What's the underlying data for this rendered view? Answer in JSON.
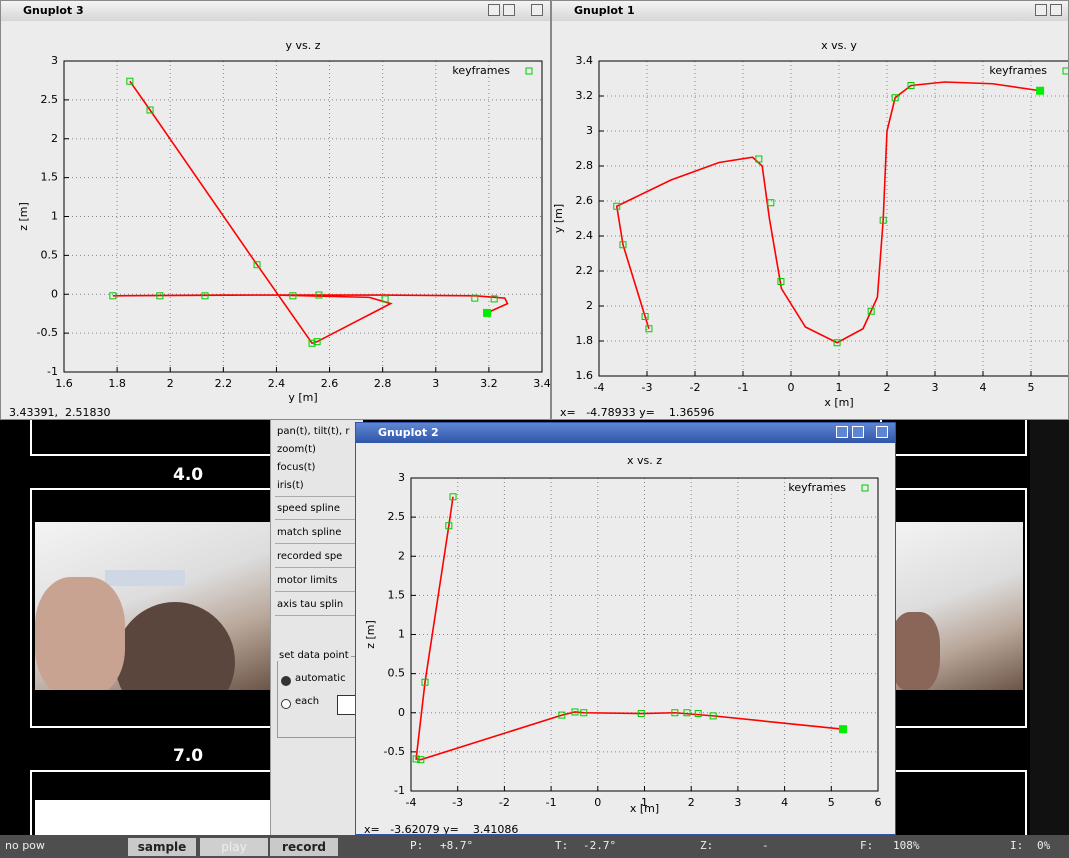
{
  "chart_data": [
    {
      "type": "line",
      "window_title": "Gnuplot 3",
      "title": "y vs. z",
      "xlabel": "y [m]",
      "ylabel": "z [m]",
      "xlim": [
        1.6,
        3.4
      ],
      "ylim": [
        -1,
        3
      ],
      "xticks": [
        1.6,
        1.8,
        2,
        2.2,
        2.4,
        2.6,
        2.8,
        3,
        3.2,
        3.4
      ],
      "yticks": [
        -1,
        -0.5,
        0,
        0.5,
        1,
        1.5,
        2,
        2.5,
        3
      ],
      "grid": true,
      "legend_position": "top-right",
      "status": "3.43391,  2.51830",
      "series": [
        {
          "style": "line",
          "color": "#ff0000",
          "x": [
            1.848,
            1.924,
            2.327,
            2.534,
            2.553,
            2.7,
            2.83,
            2.75,
            2.4,
            1.784,
            2.2,
            2.8,
            3.15,
            3.26,
            3.27,
            3.193
          ],
          "values": [
            2.74,
            2.37,
            0.38,
            -0.63,
            -0.61,
            -0.35,
            -0.12,
            -0.04,
            -0.01,
            -0.02,
            -0.01,
            -0.01,
            -0.02,
            -0.05,
            -0.12,
            -0.24
          ]
        },
        {
          "name": "keyframes",
          "style": "open-square",
          "color": "#00cc00",
          "x": [
            1.848,
            1.924,
            2.327,
            1.784,
            1.961,
            2.131,
            2.462,
            2.56,
            2.809,
            3.147,
            3.22,
            2.534,
            2.553
          ],
          "values": [
            2.74,
            2.37,
            0.38,
            -0.02,
            -0.02,
            -0.02,
            -0.02,
            -0.01,
            -0.06,
            -0.05,
            -0.06,
            -0.63,
            -0.61
          ]
        },
        {
          "style": "filled-square",
          "color": "#00ee00",
          "x": [
            3.193
          ],
          "values": [
            -0.24
          ]
        }
      ]
    },
    {
      "type": "line",
      "window_title": "Gnuplot 1",
      "title": "x vs. y",
      "xlabel": "x [m]",
      "ylabel": "y [m]",
      "xlim": [
        -4,
        6
      ],
      "ylim": [
        1.6,
        3.4
      ],
      "xticks": [
        -4,
        -3,
        -2,
        -1,
        0,
        1,
        2,
        3,
        4,
        5
      ],
      "yticks": [
        1.6,
        1.8,
        2,
        2.2,
        2.4,
        2.6,
        2.8,
        3,
        3.2,
        3.4
      ],
      "grid": true,
      "legend_position": "top-right",
      "status": "x=   -4.78933 y=    1.36596",
      "series": [
        {
          "style": "line",
          "color": "#ff0000",
          "x": [
            -2.96,
            -3.04,
            -3.5,
            -3.63,
            -2.5,
            -1.5,
            -0.8,
            -0.6,
            -0.45,
            -0.2,
            0.3,
            0.96,
            1.5,
            1.8,
            1.92,
            2.0,
            2.17,
            2.5,
            3.2,
            4.2,
            5.19
          ],
          "values": [
            1.87,
            1.94,
            2.35,
            2.57,
            2.72,
            2.82,
            2.85,
            2.8,
            2.5,
            2.1,
            1.88,
            1.79,
            1.87,
            2.05,
            2.49,
            3.0,
            3.19,
            3.26,
            3.28,
            3.27,
            3.23
          ]
        },
        {
          "name": "keyframes",
          "style": "open-square",
          "color": "#00cc00",
          "x": [
            -3.63,
            -3.5,
            -3.04,
            -2.96,
            -0.67,
            -0.42,
            -0.21,
            0.96,
            1.67,
            1.92,
            2.17,
            2.5
          ],
          "values": [
            2.57,
            2.35,
            1.94,
            1.87,
            2.84,
            2.59,
            2.14,
            1.79,
            1.97,
            2.49,
            3.19,
            3.26
          ]
        },
        {
          "style": "filled-square",
          "color": "#00ee00",
          "x": [
            5.19
          ],
          "values": [
            3.23
          ]
        }
      ]
    },
    {
      "type": "line",
      "window_title": "Gnuplot 2",
      "title": "x vs. z",
      "xlabel": "x [m]",
      "ylabel": "z [m]",
      "xlim": [
        -4,
        6
      ],
      "ylim": [
        -1,
        3
      ],
      "xticks": [
        -4,
        -3,
        -2,
        -1,
        0,
        1,
        2,
        3,
        4,
        5,
        6
      ],
      "yticks": [
        -1,
        -0.5,
        0,
        0.5,
        1,
        1.5,
        2,
        2.5,
        3
      ],
      "grid": true,
      "legend_position": "top-right",
      "status": "x=   -3.62079 y=    3.41086",
      "series": [
        {
          "style": "line",
          "color": "#ff0000",
          "x": [
            -3.1,
            -3.19,
            -3.7,
            -3.89,
            -3.79,
            -0.77,
            -0.49,
            -0.3,
            0.93,
            1.65,
            2.47,
            5.25
          ],
          "values": [
            2.76,
            2.39,
            0.39,
            -0.59,
            -0.6,
            -0.03,
            0.01,
            0.0,
            -0.01,
            0.0,
            -0.04,
            -0.21
          ]
        },
        {
          "name": "keyframes",
          "style": "open-square",
          "color": "#00cc00",
          "x": [
            -3.1,
            -3.19,
            -3.7,
            -3.79,
            -3.89,
            -0.77,
            -0.49,
            -0.3,
            0.93,
            1.65,
            1.91,
            2.15,
            2.47
          ],
          "values": [
            2.76,
            2.39,
            0.39,
            -0.6,
            -0.59,
            -0.03,
            0.01,
            0.0,
            -0.01,
            0.0,
            0.0,
            -0.01,
            -0.04
          ]
        },
        {
          "style": "filled-square",
          "color": "#00ee00",
          "x": [
            5.25
          ],
          "values": [
            -0.21
          ]
        }
      ]
    }
  ],
  "ui": {
    "film_labels": [
      "4.0",
      "7.0"
    ],
    "panel_items": [
      "pan(t), tilt(t), r",
      "zoom(t)",
      "focus(t)",
      "iris(t)",
      "speed spline",
      "match spline",
      "recorded spe",
      "motor limits",
      "axis tau splin"
    ],
    "group_title": "set data point",
    "radios": [
      "automatic",
      "each"
    ],
    "status_left": "no pow",
    "buttons": [
      "sample",
      "play",
      "record"
    ],
    "fields": [
      {
        "label": "P:",
        "value": "+8.7°"
      },
      {
        "label": "T:",
        "value": "-2.7°"
      },
      {
        "label": "Z:",
        "value": "-"
      },
      {
        "label": "F:",
        "value": "108%"
      },
      {
        "label": "I:",
        "value": "0%"
      }
    ]
  }
}
